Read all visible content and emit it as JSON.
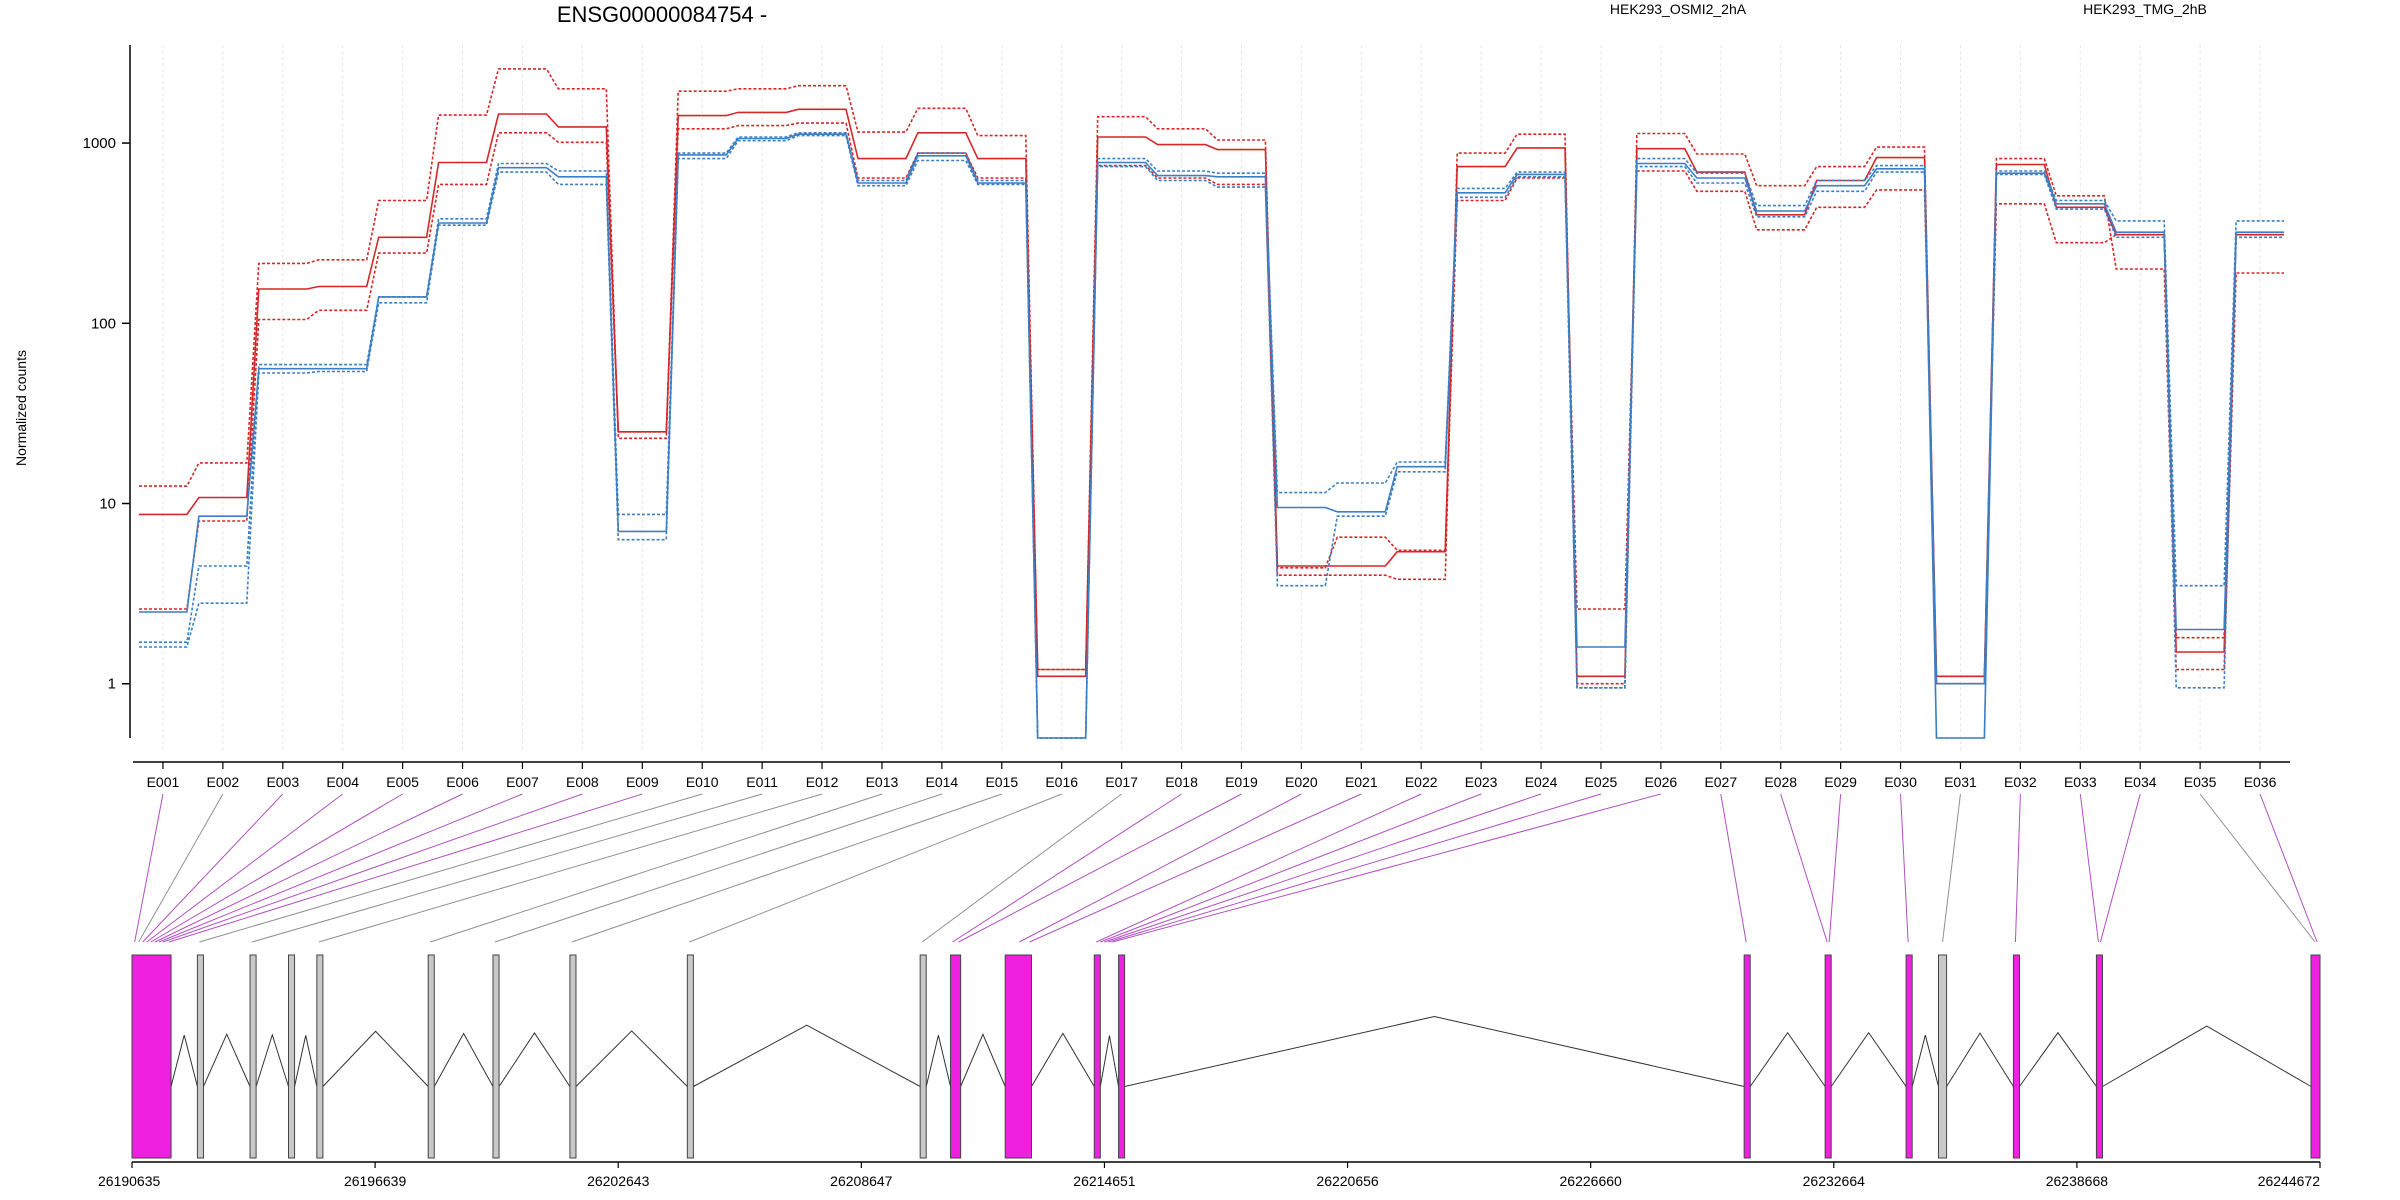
{
  "chart_data": [
    {
      "type": "line",
      "title": "ENSG00000084754 -",
      "ylabel": "Normalized counts",
      "y_scale": "log",
      "y_ticks": [
        {
          "value": 1,
          "label": "1"
        },
        {
          "value": 10,
          "label": "10"
        },
        {
          "value": 100,
          "label": "100"
        },
        {
          "value": 1000,
          "label": "1000"
        }
      ],
      "ylim": [
        0.5,
        3500
      ],
      "grid_vertical": true,
      "categories": [
        "E001",
        "E002",
        "E003",
        "E004",
        "E005",
        "E006",
        "E007",
        "E008",
        "E009",
        "E010",
        "E011",
        "E012",
        "E013",
        "E014",
        "E015",
        "E016",
        "E017",
        "E018",
        "E019",
        "E020",
        "E021",
        "E022",
        "E023",
        "E024",
        "E025",
        "E026",
        "E027",
        "E028",
        "E029",
        "E030",
        "E031",
        "E032",
        "E033",
        "E034",
        "E035",
        "E036"
      ],
      "groups": [
        {
          "name": "HEK293_OSMI2_2hA",
          "color": "#d62728"
        },
        {
          "name": "HEK293_TMG_2hB",
          "color": "#3b7fc4"
        }
      ],
      "series": [
        {
          "group": 0,
          "style": "dashed",
          "values": [
            12.5,
            16.8,
            215,
            225,
            480,
            1430,
            2580,
            2000,
            23,
            1940,
            2000,
            2080,
            1150,
            1560,
            1100,
            1.2,
            1400,
            1200,
            1040,
            4.0,
            4.0,
            3.8,
            880,
            1120,
            1.0,
            1130,
            870,
            580,
            740,
            950,
            1.0,
            820,
            510,
            200,
            1.2,
            190
          ]
        },
        {
          "group": 0,
          "style": "solid",
          "values": [
            8.7,
            10.8,
            155,
            160,
            300,
            780,
            1450,
            1230,
            25,
            1420,
            1480,
            1540,
            820,
            1140,
            820,
            1.1,
            1080,
            980,
            920,
            4.5,
            4.5,
            5.4,
            740,
            940,
            1.1,
            930,
            690,
            400,
            620,
            830,
            1.1,
            760,
            440,
            310,
            1.5,
            310
          ]
        },
        {
          "group": 0,
          "style": "dashed",
          "values": [
            2.6,
            8.0,
            105,
            118,
            245,
            590,
            1140,
            1010,
            25,
            1200,
            1250,
            1290,
            640,
            880,
            640,
            1.2,
            750,
            640,
            590,
            4.4,
            6.5,
            5.5,
            480,
            640,
            2.6,
            700,
            540,
            330,
            440,
            550,
            1.1,
            460,
            280,
            310,
            1.8,
            310
          ]
        },
        {
          "group": 1,
          "style": "dashed",
          "values": [
            1.7,
            4.5,
            59,
            59,
            140,
            380,
            770,
            700,
            8.7,
            880,
            1080,
            1140,
            620,
            880,
            620,
            0.5,
            820,
            700,
            680,
            11.5,
            13,
            17,
            560,
            690,
            0.95,
            820,
            680,
            450,
            620,
            750,
            0.5,
            700,
            480,
            370,
            3.5,
            370
          ]
        },
        {
          "group": 1,
          "style": "solid",
          "values": [
            2.5,
            8.5,
            56,
            56,
            140,
            360,
            730,
            650,
            7.0,
            860,
            1060,
            1120,
            600,
            850,
            600,
            0.5,
            780,
            660,
            650,
            9.5,
            9.0,
            16,
            530,
            670,
            1.6,
            770,
            640,
            420,
            580,
            720,
            1.0,
            680,
            460,
            320,
            2.0,
            320
          ]
        },
        {
          "group": 1,
          "style": "dashed",
          "values": [
            1.6,
            2.8,
            53,
            54,
            130,
            350,
            690,
            590,
            6.3,
            820,
            1030,
            1100,
            580,
            800,
            590,
            0.5,
            740,
            620,
            570,
            3.5,
            8.5,
            15,
            500,
            650,
            0.95,
            740,
            600,
            390,
            540,
            690,
            0.5,
            670,
            430,
            300,
            0.95,
            300
          ]
        }
      ]
    },
    {
      "type": "gene_model",
      "x_ticks": [
        "26190635",
        "26196639",
        "26202643",
        "26208647",
        "26214651",
        "26220656",
        "26226660",
        "26232664",
        "26238668",
        "26244672"
      ],
      "xlim": [
        26190635,
        26244672
      ],
      "colors": {
        "tested_exon": "#f020e0",
        "untested_exon": "#c8c8c8",
        "intron": "#333333"
      },
      "exons": [
        {
          "start": 26190635,
          "end": 26191600,
          "tested": true
        },
        {
          "start": 26192250,
          "end": 26192400,
          "tested": false
        },
        {
          "start": 26193550,
          "end": 26193700,
          "tested": false
        },
        {
          "start": 26194500,
          "end": 26194650,
          "tested": false
        },
        {
          "start": 26195200,
          "end": 26195350,
          "tested": false
        },
        {
          "start": 26197950,
          "end": 26198100,
          "tested": false
        },
        {
          "start": 26199550,
          "end": 26199700,
          "tested": false
        },
        {
          "start": 26201450,
          "end": 26201600,
          "tested": false
        },
        {
          "start": 26204350,
          "end": 26204500,
          "tested": false
        },
        {
          "start": 26210100,
          "end": 26210250,
          "tested": false
        },
        {
          "start": 26210850,
          "end": 26211100,
          "tested": true
        },
        {
          "start": 26212200,
          "end": 26212850,
          "tested": true
        },
        {
          "start": 26214400,
          "end": 26214550,
          "tested": true
        },
        {
          "start": 26215000,
          "end": 26215150,
          "tested": true
        },
        {
          "start": 26230450,
          "end": 26230600,
          "tested": true
        },
        {
          "start": 26232450,
          "end": 26232600,
          "tested": true
        },
        {
          "start": 26234450,
          "end": 26234600,
          "tested": true
        },
        {
          "start": 26235250,
          "end": 26235450,
          "tested": false
        },
        {
          "start": 26237100,
          "end": 26237250,
          "tested": true
        },
        {
          "start": 26239150,
          "end": 26239300,
          "tested": true
        },
        {
          "start": 26244450,
          "end": 26244672,
          "tested": true
        }
      ],
      "connectors": [
        {
          "bin": 0,
          "pos": 26190700,
          "tested": true
        },
        {
          "bin": 1,
          "pos": 26190800,
          "tested": false
        },
        {
          "bin": 2,
          "pos": 26190900,
          "tested": true
        },
        {
          "bin": 3,
          "pos": 26191000,
          "tested": true
        },
        {
          "bin": 4,
          "pos": 26191100,
          "tested": true
        },
        {
          "bin": 5,
          "pos": 26191200,
          "tested": true
        },
        {
          "bin": 6,
          "pos": 26191300,
          "tested": true
        },
        {
          "bin": 7,
          "pos": 26191400,
          "tested": true
        },
        {
          "bin": 8,
          "pos": 26191550,
          "tested": true
        },
        {
          "bin": 9,
          "pos": 26192300,
          "tested": false
        },
        {
          "bin": 10,
          "pos": 26193600,
          "tested": false
        },
        {
          "bin": 11,
          "pos": 26195250,
          "tested": false
        },
        {
          "bin": 12,
          "pos": 26198000,
          "tested": false
        },
        {
          "bin": 13,
          "pos": 26199600,
          "tested": false
        },
        {
          "bin": 14,
          "pos": 26201500,
          "tested": false
        },
        {
          "bin": 15,
          "pos": 26204400,
          "tested": false
        },
        {
          "bin": 16,
          "pos": 26210150,
          "tested": false
        },
        {
          "bin": 17,
          "pos": 26210900,
          "tested": true
        },
        {
          "bin": 18,
          "pos": 26211050,
          "tested": true
        },
        {
          "bin": 19,
          "pos": 26212550,
          "tested": true
        },
        {
          "bin": 20,
          "pos": 26212800,
          "tested": true
        },
        {
          "bin": 21,
          "pos": 26214450,
          "tested": true
        },
        {
          "bin": 22,
          "pos": 26214550,
          "tested": true
        },
        {
          "bin": 23,
          "pos": 26214650,
          "tested": true
        },
        {
          "bin": 24,
          "pos": 26214750,
          "tested": true
        },
        {
          "bin": 25,
          "pos": 26214850,
          "tested": true
        },
        {
          "bin": 26,
          "pos": 26230500,
          "tested": true
        },
        {
          "bin": 27,
          "pos": 26232500,
          "tested": true
        },
        {
          "bin": 28,
          "pos": 26232550,
          "tested": true
        },
        {
          "bin": 29,
          "pos": 26234500,
          "tested": true
        },
        {
          "bin": 30,
          "pos": 26235350,
          "tested": false
        },
        {
          "bin": 31,
          "pos": 26237150,
          "tested": true
        },
        {
          "bin": 32,
          "pos": 26239200,
          "tested": true
        },
        {
          "bin": 33,
          "pos": 26239250,
          "tested": true
        },
        {
          "bin": 34,
          "pos": 26244550,
          "tested": false
        },
        {
          "bin": 35,
          "pos": 26244600,
          "tested": true
        }
      ]
    }
  ]
}
